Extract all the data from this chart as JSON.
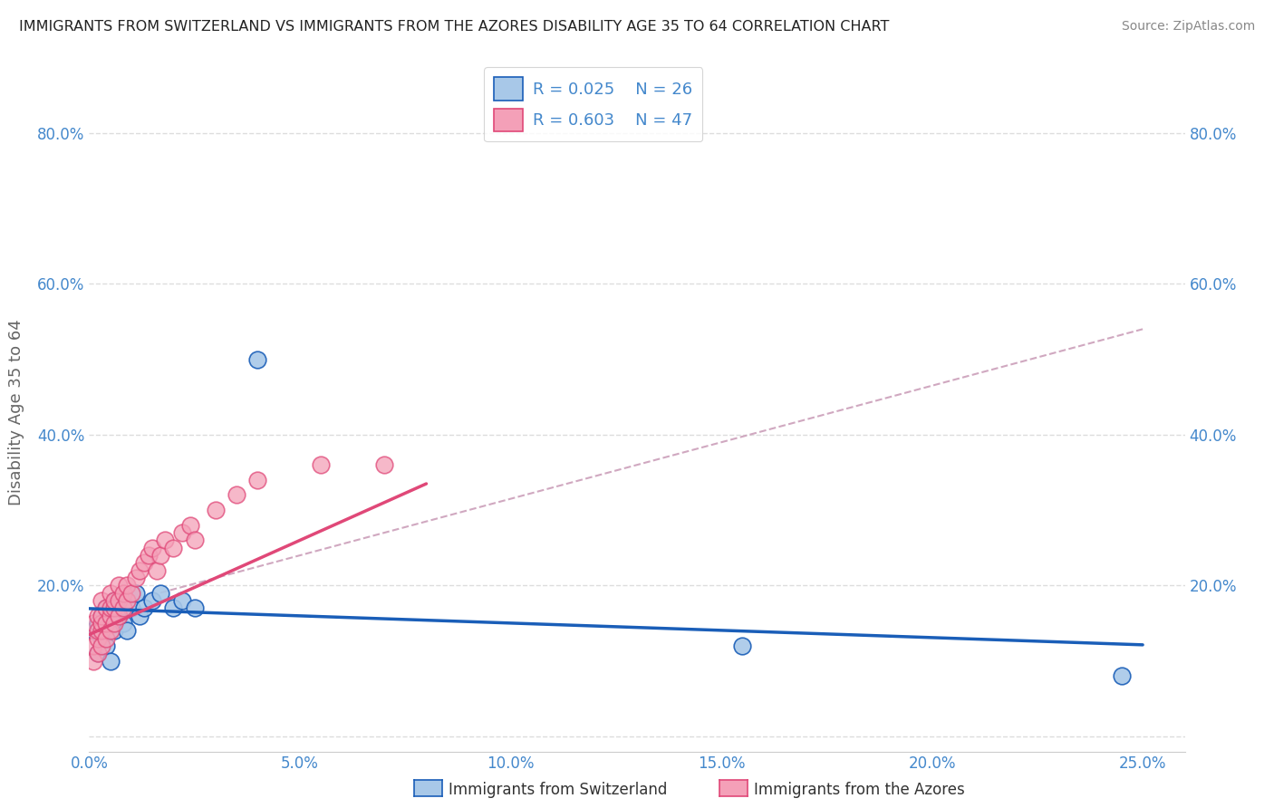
{
  "title": "IMMIGRANTS FROM SWITZERLAND VS IMMIGRANTS FROM THE AZORES DISABILITY AGE 35 TO 64 CORRELATION CHART",
  "source": "Source: ZipAtlas.com",
  "ylabel": "Disability Age 35 to 64",
  "xlim": [
    0.0,
    0.26
  ],
  "ylim": [
    -0.02,
    0.88
  ],
  "yticks": [
    0.0,
    0.2,
    0.4,
    0.6,
    0.8
  ],
  "ytick_labels": [
    "",
    "20.0%",
    "40.0%",
    "60.0%",
    "80.0%"
  ],
  "xtick_vals": [
    0.0,
    0.05,
    0.1,
    0.15,
    0.2,
    0.25
  ],
  "xtick_labels": [
    "0.0%",
    "5.0%",
    "10.0%",
    "15.0%",
    "20.0%",
    "25.0%"
  ],
  "legend_r1": "R = 0.025",
  "legend_n1": "N = 26",
  "legend_r2": "R = 0.603",
  "legend_n2": "N = 47",
  "legend_label1": "Immigrants from Switzerland",
  "legend_label2": "Immigrants from the Azores",
  "color_swiss": "#a8c8e8",
  "color_azores": "#f4a0b8",
  "color_swiss_line": "#1a5eb8",
  "color_azores_line": "#e04878",
  "color_dashed_line": "#d0a8c0",
  "title_color": "#222222",
  "axis_label_color": "#4488cc",
  "background_color": "#ffffff",
  "grid_color": "#dddddd",
  "swiss_x": [
    0.001,
    0.002,
    0.002,
    0.003,
    0.003,
    0.004,
    0.004,
    0.005,
    0.005,
    0.006,
    0.006,
    0.007,
    0.008,
    0.009,
    0.01,
    0.011,
    0.012,
    0.013,
    0.015,
    0.017,
    0.02,
    0.022,
    0.025,
    0.04,
    0.155,
    0.245
  ],
  "swiss_y": [
    0.14,
    0.11,
    0.15,
    0.13,
    0.16,
    0.12,
    0.17,
    0.15,
    0.1,
    0.18,
    0.14,
    0.16,
    0.15,
    0.14,
    0.17,
    0.19,
    0.16,
    0.17,
    0.18,
    0.19,
    0.17,
    0.18,
    0.17,
    0.5,
    0.12,
    0.08
  ],
  "azores_x": [
    0.001,
    0.001,
    0.001,
    0.002,
    0.002,
    0.002,
    0.002,
    0.003,
    0.003,
    0.003,
    0.003,
    0.003,
    0.004,
    0.004,
    0.004,
    0.005,
    0.005,
    0.005,
    0.005,
    0.006,
    0.006,
    0.006,
    0.007,
    0.007,
    0.007,
    0.008,
    0.008,
    0.009,
    0.009,
    0.01,
    0.011,
    0.012,
    0.013,
    0.014,
    0.015,
    0.016,
    0.017,
    0.018,
    0.02,
    0.022,
    0.024,
    0.025,
    0.03,
    0.035,
    0.04,
    0.055,
    0.07
  ],
  "azores_y": [
    0.1,
    0.12,
    0.15,
    0.11,
    0.13,
    0.14,
    0.16,
    0.12,
    0.14,
    0.15,
    0.16,
    0.18,
    0.13,
    0.15,
    0.17,
    0.14,
    0.16,
    0.17,
    0.19,
    0.15,
    0.17,
    0.18,
    0.16,
    0.18,
    0.2,
    0.17,
    0.19,
    0.18,
    0.2,
    0.19,
    0.21,
    0.22,
    0.23,
    0.24,
    0.25,
    0.22,
    0.24,
    0.26,
    0.25,
    0.27,
    0.28,
    0.26,
    0.3,
    0.32,
    0.34,
    0.36,
    0.36
  ],
  "swiss_trend": [
    0.155,
    0.185
  ],
  "azores_trend_x": [
    0.0,
    0.08
  ],
  "azores_trend_y": [
    0.135,
    0.335
  ],
  "dashed_trend_x": [
    0.01,
    0.25
  ],
  "dashed_trend_y": [
    0.18,
    0.54
  ]
}
